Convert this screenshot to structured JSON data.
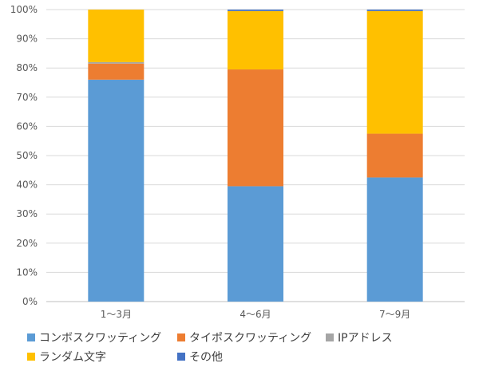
{
  "chart_data": {
    "type": "bar",
    "stacked": true,
    "percent": true,
    "categories": [
      "1〜3月",
      "4〜6月",
      "7〜9月"
    ],
    "series": [
      {
        "name": "コンボスクワッティング",
        "color": "#5B9BD5",
        "values": [
          76,
          39.5,
          42.5
        ]
      },
      {
        "name": "タイポスクワッティング",
        "color": "#ED7D31",
        "values": [
          5.5,
          40,
          15
        ]
      },
      {
        "name": "IPアドレス",
        "color": "#A5A5A5",
        "values": [
          0.5,
          0,
          0
        ]
      },
      {
        "name": "ランダム文字",
        "color": "#FFC000",
        "values": [
          18,
          20,
          42
        ]
      },
      {
        "name": "その他",
        "color": "#4472C4",
        "values": [
          0,
          0.5,
          0.5
        ]
      }
    ],
    "yticks": [
      "0%",
      "10%",
      "20%",
      "30%",
      "40%",
      "50%",
      "60%",
      "70%",
      "80%",
      "90%",
      "100%"
    ],
    "ylim": [
      0,
      100
    ],
    "grid": true,
    "legend_position": "bottom"
  }
}
